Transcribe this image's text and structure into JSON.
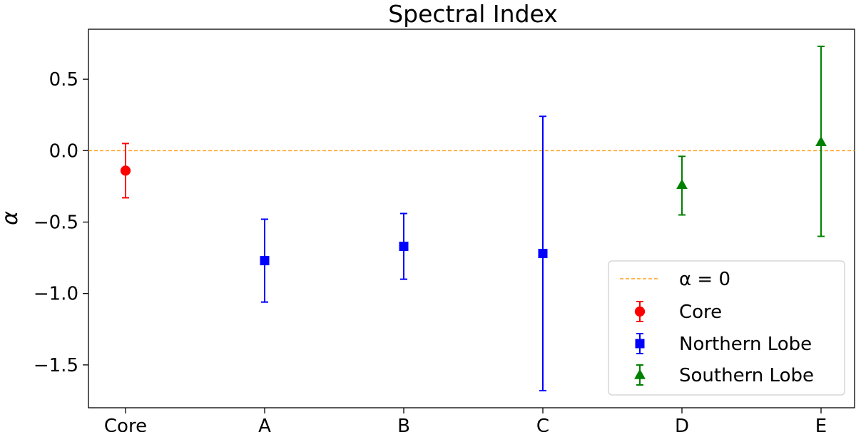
{
  "chart_data": {
    "type": "scatter",
    "title": "Spectral Index",
    "xlabel": "",
    "ylabel": "α",
    "categories": [
      "Core",
      "A",
      "B",
      "C",
      "D",
      "E"
    ],
    "ylim": [
      -1.8,
      0.85
    ],
    "yticks": [
      0.5,
      0.0,
      -0.5,
      -1.0,
      -1.5
    ],
    "ytick_labels": [
      "0.5",
      "0.0",
      "−0.5",
      "−1.0",
      "−1.5"
    ],
    "grid": false,
    "legend_position": "bottom-right",
    "reference_line": {
      "y": 0,
      "label": "α = 0",
      "color": "#ff9f1c",
      "style": "dashed"
    },
    "series": [
      {
        "name": "Core",
        "color": "#ff0000",
        "marker": "circle",
        "points": [
          {
            "x": "Core",
            "y": -0.14,
            "err_low": -0.33,
            "err_high": 0.05
          }
        ]
      },
      {
        "name": "Northern Lobe",
        "color": "#0000ff",
        "marker": "square",
        "points": [
          {
            "x": "A",
            "y": -0.77,
            "err_low": -1.06,
            "err_high": -0.48
          },
          {
            "x": "B",
            "y": -0.67,
            "err_low": -0.9,
            "err_high": -0.44
          },
          {
            "x": "C",
            "y": -0.72,
            "err_low": -1.68,
            "err_high": 0.24
          }
        ]
      },
      {
        "name": "Southern Lobe",
        "color": "#008000",
        "marker": "triangle",
        "points": [
          {
            "x": "D",
            "y": -0.24,
            "err_low": -0.45,
            "err_high": -0.04
          },
          {
            "x": "E",
            "y": 0.06,
            "err_low": -0.6,
            "err_high": 0.73
          }
        ]
      }
    ]
  }
}
